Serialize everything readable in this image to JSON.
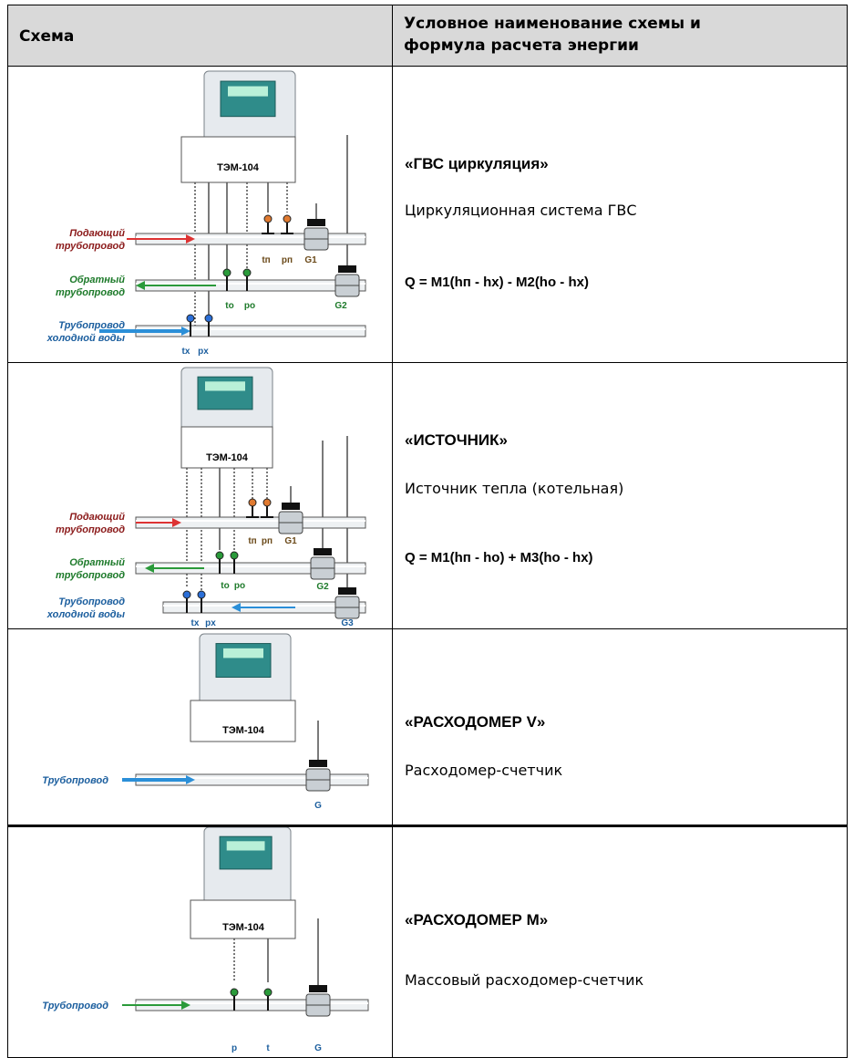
{
  "header": {
    "col1": "Схема",
    "col2": [
      "Условное наименование схемы и",
      "формула расчета энергии"
    ]
  },
  "rows": [
    {
      "diagram": {
        "device": "ТЭМ-104",
        "pipes": [
          [
            "Подающий",
            "трубопровод"
          ],
          [
            "Обратный",
            "трубопровод"
          ],
          [
            "Трубопровод",
            "холодной воды"
          ]
        ],
        "sensors": [
          "tп",
          "pп",
          "G1",
          "tо",
          "pо",
          "G2",
          "tх",
          "pх"
        ]
      },
      "name": "«ГВС циркуляция»",
      "description": "Циркуляционная система ГВС",
      "formula": "Q = M1(hп - hх) - M2(hо - hх)"
    },
    {
      "diagram": {
        "device": "ТЭМ-104",
        "pipes": [
          [
            "Подающий",
            "трубопровод"
          ],
          [
            "Обратный",
            "трубопровод"
          ],
          [
            "Трубопровод",
            "холодной воды"
          ]
        ],
        "sensors": [
          "tп",
          "pп",
          "G1",
          "tо",
          "pо",
          "G2",
          "tх",
          "pх",
          "G3"
        ]
      },
      "name": "«ИСТОЧНИК»",
      "description": "Источник тепла (котельная)",
      "formula": "Q = M1(hп - hо) + M3(hо - hх)"
    },
    {
      "diagram": {
        "device": "ТЭМ-104",
        "pipes": [
          [
            "Трубопровод"
          ]
        ],
        "sensors": [
          "G"
        ]
      },
      "name": "«РАСХОДОМЕР V»",
      "description": "Расходомер-счетчик"
    },
    {
      "diagram": {
        "device": "ТЭМ-104",
        "pipes": [
          [
            "Трубопровод"
          ]
        ],
        "sensors": [
          "p",
          "t",
          "G"
        ]
      },
      "name": "«РАСХОДОМЕР М»",
      "description": "Массовый расходомер-счетчик"
    }
  ]
}
